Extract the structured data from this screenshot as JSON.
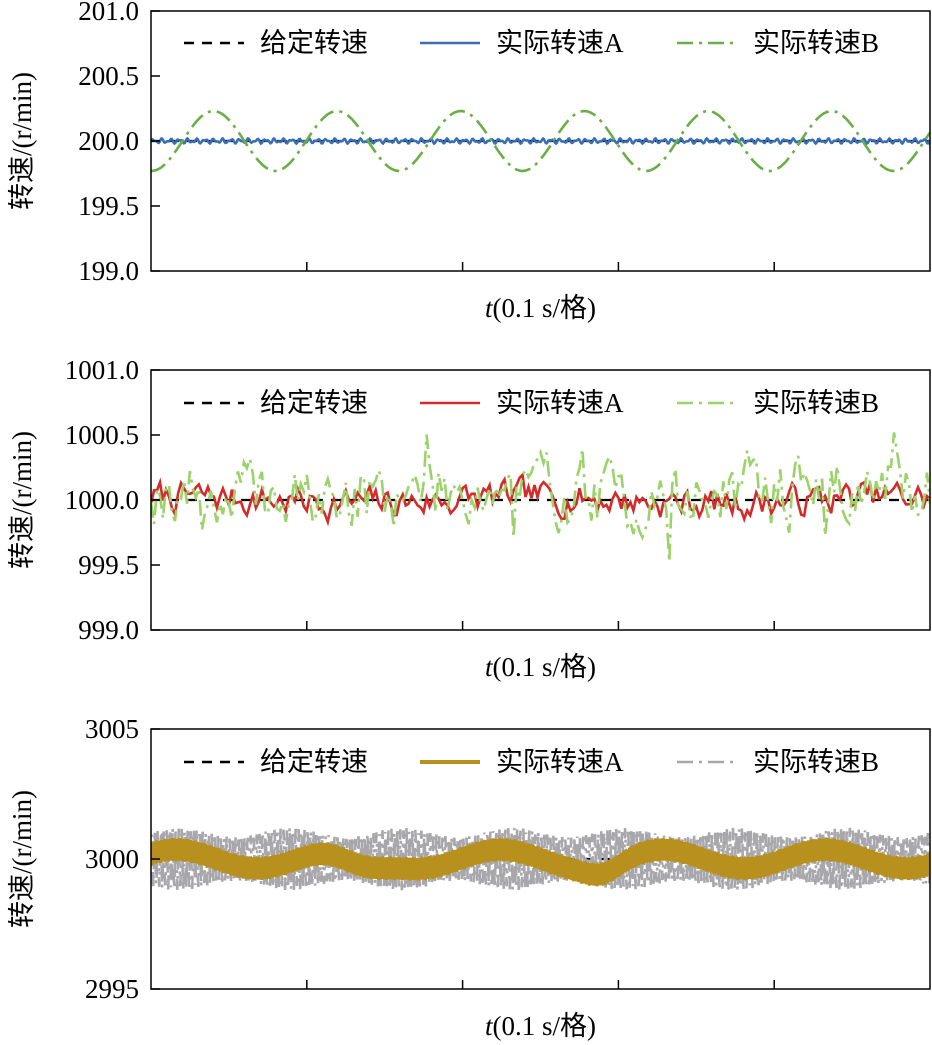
{
  "chart_data": [
    {
      "type": "line",
      "ylabel": "转速/(r/min)",
      "xlabel_var": "t",
      "xlabel_rest": "(0.1 s/格)",
      "ylim": [
        199.0,
        201.0
      ],
      "yticks": [
        "201.0",
        "200.5",
        "200.0",
        "199.5",
        "199.0"
      ],
      "ytick_values": [
        201.0,
        200.5,
        200.0,
        199.5,
        199.0
      ],
      "x_range": [
        0,
        0.5
      ],
      "x_divisions": 5,
      "grid": false,
      "legend_position": "top",
      "series": [
        {
          "name": "给定转速",
          "style": "dashed",
          "color": "#000000",
          "kind": "constant",
          "value": 200.0
        },
        {
          "name": "实际转速A",
          "style": "solid",
          "color": "#3a6fb5",
          "kind": "ripple",
          "center": 200.0,
          "amp": 0.02,
          "freq": 90
        },
        {
          "name": "实际转速B",
          "style": "dashdot",
          "color": "#6aaf45",
          "kind": "sine",
          "center": 200.0,
          "amp": 0.23,
          "cycles": 6.3,
          "phase": -1.6
        }
      ]
    },
    {
      "type": "line",
      "ylabel": "转速/(r/min)",
      "xlabel_var": "t",
      "xlabel_rest": "(0.1 s/格)",
      "ylim": [
        999.0,
        1001.0
      ],
      "yticks": [
        "1001.0",
        "1000.5",
        "1000.0",
        "999.5",
        "999.0"
      ],
      "ytick_values": [
        1001.0,
        1000.5,
        1000.0,
        999.5,
        999.0
      ],
      "x_range": [
        0,
        0.5
      ],
      "x_divisions": 5,
      "grid": false,
      "legend_position": "top",
      "series": [
        {
          "name": "给定转速",
          "style": "dashed",
          "color": "#000000",
          "kind": "constant",
          "value": 1000.0
        },
        {
          "name": "实际转速A",
          "style": "solid",
          "color": "#d42a2a",
          "kind": "noisy",
          "center": 1000.0,
          "amp": 0.1,
          "seed": 7
        },
        {
          "name": "实际转速B",
          "style": "dashdot",
          "color": "#9bd36a",
          "kind": "noisy",
          "center": 1000.05,
          "amp": 0.22,
          "seed": 19
        }
      ]
    },
    {
      "type": "line",
      "ylabel": "转速/(r/min)",
      "xlabel_var": "t",
      "xlabel_rest": "(0.1 s/格)",
      "ylim": [
        2995,
        3005
      ],
      "yticks": [
        "3005",
        "3000",
        "2995"
      ],
      "ytick_values": [
        3005,
        3000,
        2995
      ],
      "x_range": [
        0,
        0.5
      ],
      "x_divisions": 5,
      "grid": false,
      "legend_position": "top",
      "series": [
        {
          "name": "给定转速",
          "style": "dashed",
          "color": "#000000",
          "kind": "constant",
          "value": 3000.0
        },
        {
          "name": "实际转速B",
          "style": "dashdot",
          "color": "#a8a8ac",
          "kind": "hf",
          "center": 3000.0,
          "amp": 1.2,
          "freq": 260
        },
        {
          "name": "实际转速A",
          "style": "solid",
          "color": "#b8901e",
          "kind": "hfband",
          "center": 3000.0,
          "amp": 0.45,
          "freq": 300
        }
      ]
    }
  ],
  "legend_order": [
    "给定转速",
    "实际转速A",
    "实际转速B"
  ]
}
